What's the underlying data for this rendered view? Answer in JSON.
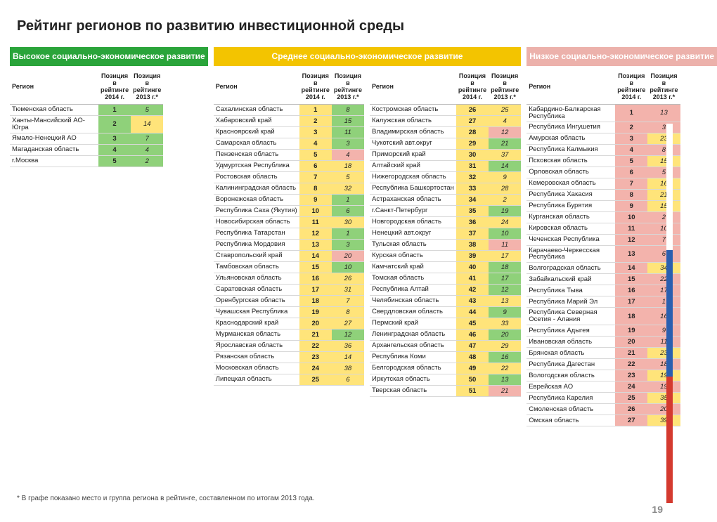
{
  "page_title": "Рейтинг регионов по развитию инвестиционной среды",
  "page_number": "19",
  "footnote": "* В графе показано место и группа региона в рейтинге, составленном по итогам 2013 года.",
  "columns_header": {
    "region": "Регион",
    "pos2014": "Позиция в рейтинге 2014 г.",
    "pos2013": "Позиция в рейтинге 2013 г.*"
  },
  "groups": [
    {
      "key": "green",
      "title": "Высокое социально-экономическое развитие",
      "tables": [
        [
          {
            "r": "Тюменская область",
            "p": "1",
            "prev": "5",
            "pc": "bg-g",
            "vc": "bg-g"
          },
          {
            "r": "Ханты-Мансийский АО-Югра",
            "p": "2",
            "prev": "14",
            "pc": "bg-g",
            "vc": "bg-y"
          },
          {
            "r": "Ямало-Ненецкий АО",
            "p": "3",
            "prev": "7",
            "pc": "bg-g",
            "vc": "bg-g"
          },
          {
            "r": "Магаданская область",
            "p": "4",
            "prev": "4",
            "pc": "bg-g",
            "vc": "bg-g"
          },
          {
            "r": "г.Москва",
            "p": "5",
            "prev": "2",
            "pc": "bg-g",
            "vc": "bg-g"
          }
        ]
      ]
    },
    {
      "key": "yellow",
      "title": "Среднее социально-экономическое развитие",
      "tables": [
        [
          {
            "r": "Сахалинская область",
            "p": "1",
            "prev": "8",
            "pc": "bg-y",
            "vc": "bg-g"
          },
          {
            "r": "Хабаровский край",
            "p": "2",
            "prev": "15",
            "pc": "bg-y",
            "vc": "bg-g"
          },
          {
            "r": "Красноярский край",
            "p": "3",
            "prev": "11",
            "pc": "bg-y",
            "vc": "bg-g"
          },
          {
            "r": "Самарская область",
            "p": "4",
            "prev": "3",
            "pc": "bg-y",
            "vc": "bg-g"
          },
          {
            "r": "Пензенская область",
            "p": "5",
            "prev": "4",
            "pc": "bg-y",
            "vc": "bg-p"
          },
          {
            "r": "Удмуртская Республика",
            "p": "6",
            "prev": "18",
            "pc": "bg-y",
            "vc": "bg-y"
          },
          {
            "r": "Ростовская область",
            "p": "7",
            "prev": "5",
            "pc": "bg-y",
            "vc": "bg-y"
          },
          {
            "r": "Калининградская область",
            "p": "8",
            "prev": "32",
            "pc": "bg-y",
            "vc": "bg-y"
          },
          {
            "r": "Воронежская область",
            "p": "9",
            "prev": "1",
            "pc": "bg-y",
            "vc": "bg-g"
          },
          {
            "r": "Республика Саха (Якутия)",
            "p": "10",
            "prev": "6",
            "pc": "bg-y",
            "vc": "bg-g"
          },
          {
            "r": "Новосибирская область",
            "p": "11",
            "prev": "30",
            "pc": "bg-y",
            "vc": "bg-y"
          },
          {
            "r": "Республика Татарстан",
            "p": "12",
            "prev": "1",
            "pc": "bg-y",
            "vc": "bg-g"
          },
          {
            "r": "Республика Мордовия",
            "p": "13",
            "prev": "3",
            "pc": "bg-y",
            "vc": "bg-g"
          },
          {
            "r": "Ставропольский край",
            "p": "14",
            "prev": "20",
            "pc": "bg-y",
            "vc": "bg-p"
          },
          {
            "r": "Тамбовская область",
            "p": "15",
            "prev": "10",
            "pc": "bg-y",
            "vc": "bg-g"
          },
          {
            "r": "Ульяновская область",
            "p": "16",
            "prev": "26",
            "pc": "bg-y",
            "vc": "bg-y"
          },
          {
            "r": "Саратовская область",
            "p": "17",
            "prev": "31",
            "pc": "bg-y",
            "vc": "bg-y"
          },
          {
            "r": "Оренбургская область",
            "p": "18",
            "prev": "7",
            "pc": "bg-y",
            "vc": "bg-y"
          },
          {
            "r": "Чувашская Республика",
            "p": "19",
            "prev": "8",
            "pc": "bg-y",
            "vc": "bg-y"
          },
          {
            "r": "Краснодарский край",
            "p": "20",
            "prev": "27",
            "pc": "bg-y",
            "vc": "bg-y"
          },
          {
            "r": "Мурманская область",
            "p": "21",
            "prev": "12",
            "pc": "bg-y",
            "vc": "bg-g"
          },
          {
            "r": "Ярославская область",
            "p": "22",
            "prev": "36",
            "pc": "bg-y",
            "vc": "bg-y"
          },
          {
            "r": "Рязанская область",
            "p": "23",
            "prev": "14",
            "pc": "bg-y",
            "vc": "bg-y"
          },
          {
            "r": "Московская область",
            "p": "24",
            "prev": "38",
            "pc": "bg-y",
            "vc": "bg-y"
          },
          {
            "r": "Липецкая область",
            "p": "25",
            "prev": "6",
            "pc": "bg-y",
            "vc": "bg-y"
          }
        ],
        [
          {
            "r": "Костромская область",
            "p": "26",
            "prev": "25",
            "pc": "bg-y",
            "vc": "bg-y"
          },
          {
            "r": "Калужская область",
            "p": "27",
            "prev": "4",
            "pc": "bg-y",
            "vc": "bg-y"
          },
          {
            "r": "Владимирская область",
            "p": "28",
            "prev": "12",
            "pc": "bg-y",
            "vc": "bg-p"
          },
          {
            "r": "Чукотский авт.округ",
            "p": "29",
            "prev": "21",
            "pc": "bg-y",
            "vc": "bg-g"
          },
          {
            "r": "Приморский край",
            "p": "30",
            "prev": "37",
            "pc": "bg-y",
            "vc": "bg-y"
          },
          {
            "r": "Алтайский край",
            "p": "31",
            "prev": "14",
            "pc": "bg-y",
            "vc": "bg-g"
          },
          {
            "r": "Нижегородская область",
            "p": "32",
            "prev": "9",
            "pc": "bg-y",
            "vc": "bg-y"
          },
          {
            "r": "Республика Башкортостан",
            "p": "33",
            "prev": "28",
            "pc": "bg-y",
            "vc": "bg-y"
          },
          {
            "r": "Астраханская область",
            "p": "34",
            "prev": "2",
            "pc": "bg-y",
            "vc": "bg-y"
          },
          {
            "r": "г.Санкт-Петербург",
            "p": "35",
            "prev": "19",
            "pc": "bg-y",
            "vc": "bg-g"
          },
          {
            "r": "Новгородская область",
            "p": "36",
            "prev": "24",
            "pc": "bg-y",
            "vc": "bg-y"
          },
          {
            "r": "Ненецкий авт.округ",
            "p": "37",
            "prev": "10",
            "pc": "bg-y",
            "vc": "bg-g"
          },
          {
            "r": "Тульская область",
            "p": "38",
            "prev": "11",
            "pc": "bg-y",
            "vc": "bg-p"
          },
          {
            "r": "Курская область",
            "p": "39",
            "prev": "17",
            "pc": "bg-y",
            "vc": "bg-y"
          },
          {
            "r": "Камчатский край",
            "p": "40",
            "prev": "18",
            "pc": "bg-y",
            "vc": "bg-g"
          },
          {
            "r": "Томская область",
            "p": "41",
            "prev": "17",
            "pc": "bg-y",
            "vc": "bg-g"
          },
          {
            "r": "Республика Алтай",
            "p": "42",
            "prev": "12",
            "pc": "bg-y",
            "vc": "bg-g"
          },
          {
            "r": "Челябинская область",
            "p": "43",
            "prev": "13",
            "pc": "bg-y",
            "vc": "bg-y"
          },
          {
            "r": "Свердловская область",
            "p": "44",
            "prev": "9",
            "pc": "bg-y",
            "vc": "bg-g"
          },
          {
            "r": "Пермский край",
            "p": "45",
            "prev": "33",
            "pc": "bg-y",
            "vc": "bg-y"
          },
          {
            "r": "Ленинградская область",
            "p": "46",
            "prev": "20",
            "pc": "bg-y",
            "vc": "bg-g"
          },
          {
            "r": "Архангельская область",
            "p": "47",
            "prev": "29",
            "pc": "bg-y",
            "vc": "bg-y"
          },
          {
            "r": "Республика Коми",
            "p": "48",
            "prev": "16",
            "pc": "bg-y",
            "vc": "bg-g"
          },
          {
            "r": "Белгородская область",
            "p": "49",
            "prev": "22",
            "pc": "bg-y",
            "vc": "bg-y"
          },
          {
            "r": "Иркутская область",
            "p": "50",
            "prev": "13",
            "pc": "bg-y",
            "vc": "bg-g"
          },
          {
            "r": "Тверская область",
            "p": "51",
            "prev": "21",
            "pc": "bg-y",
            "vc": "bg-p"
          }
        ]
      ]
    },
    {
      "key": "pink",
      "title": "Низкое социально-экономическое развитие",
      "tables": [
        [
          {
            "r": "Кабардино-Балкарская Республика",
            "p": "1",
            "prev": "13",
            "pc": "bg-p",
            "vc": "bg-p"
          },
          {
            "r": "Республика Ингушетия",
            "p": "2",
            "prev": "3",
            "pc": "bg-p",
            "vc": "bg-p"
          },
          {
            "r": "Амурская область",
            "p": "3",
            "prev": "23",
            "pc": "bg-p",
            "vc": "bg-y"
          },
          {
            "r": "Республика Калмыкия",
            "p": "4",
            "prev": "8",
            "pc": "bg-p",
            "vc": "bg-p"
          },
          {
            "r": "Псковская область",
            "p": "5",
            "prev": "15",
            "pc": "bg-p",
            "vc": "bg-y"
          },
          {
            "r": "Орловская область",
            "p": "6",
            "prev": "5",
            "pc": "bg-p",
            "vc": "bg-p"
          },
          {
            "r": "Кемеровская область",
            "p": "7",
            "prev": "16",
            "pc": "bg-p",
            "vc": "bg-y"
          },
          {
            "r": "Республика Хакасия",
            "p": "8",
            "prev": "21",
            "pc": "bg-p",
            "vc": "bg-y"
          },
          {
            "r": "Республика Бурятия",
            "p": "9",
            "prev": "15",
            "pc": "bg-p",
            "vc": "bg-y"
          },
          {
            "r": "Курганская область",
            "p": "10",
            "prev": "2",
            "pc": "bg-p",
            "vc": "bg-p"
          },
          {
            "r": "Кировская область",
            "p": "11",
            "prev": "10",
            "pc": "bg-p",
            "vc": "bg-p"
          },
          {
            "r": "Чеченская Республика",
            "p": "12",
            "prev": "7",
            "pc": "bg-p",
            "vc": "bg-p"
          },
          {
            "r": "Карачаево-Черкесская Республика",
            "p": "13",
            "prev": "6",
            "pc": "bg-p",
            "vc": "bg-p"
          },
          {
            "r": "Волгоградская область",
            "p": "14",
            "prev": "34",
            "pc": "bg-p",
            "vc": "bg-y"
          },
          {
            "r": "Забайкальский край",
            "p": "15",
            "prev": "22",
            "pc": "bg-p",
            "vc": "bg-p"
          },
          {
            "r": "Республика Тыва",
            "p": "16",
            "prev": "17",
            "pc": "bg-p",
            "vc": "bg-p"
          },
          {
            "r": "Республика Марий Эл",
            "p": "17",
            "prev": "1",
            "pc": "bg-p",
            "vc": "bg-p"
          },
          {
            "r": "Республика Северная Осетия - Алания",
            "p": "18",
            "prev": "16",
            "pc": "bg-p",
            "vc": "bg-p"
          },
          {
            "r": "Республика Адыгея",
            "p": "19",
            "prev": "9",
            "pc": "bg-p",
            "vc": "bg-p"
          },
          {
            "r": "Ивановская область",
            "p": "20",
            "prev": "11",
            "pc": "bg-p",
            "vc": "bg-p"
          },
          {
            "r": "Брянская область",
            "p": "21",
            "prev": "23",
            "pc": "bg-p",
            "vc": "bg-y"
          },
          {
            "r": "Республика Дагестан",
            "p": "22",
            "prev": "18",
            "pc": "bg-p",
            "vc": "bg-p"
          },
          {
            "r": "Вологодская область",
            "p": "23",
            "prev": "19",
            "pc": "bg-p",
            "vc": "bg-y"
          },
          {
            "r": "Еврейская АО",
            "p": "24",
            "prev": "19",
            "pc": "bg-p",
            "vc": "bg-p"
          },
          {
            "r": "Республика Карелия",
            "p": "25",
            "prev": "35",
            "pc": "bg-p",
            "vc": "bg-y"
          },
          {
            "r": "Смоленская область",
            "p": "26",
            "prev": "20",
            "pc": "bg-p",
            "vc": "bg-p"
          },
          {
            "r": "Омская область",
            "p": "27",
            "prev": "39",
            "pc": "bg-p",
            "vc": "bg-y"
          }
        ]
      ]
    }
  ],
  "flag_colors": [
    "#ffffff",
    "#2a5fb0",
    "#d43a2f"
  ]
}
